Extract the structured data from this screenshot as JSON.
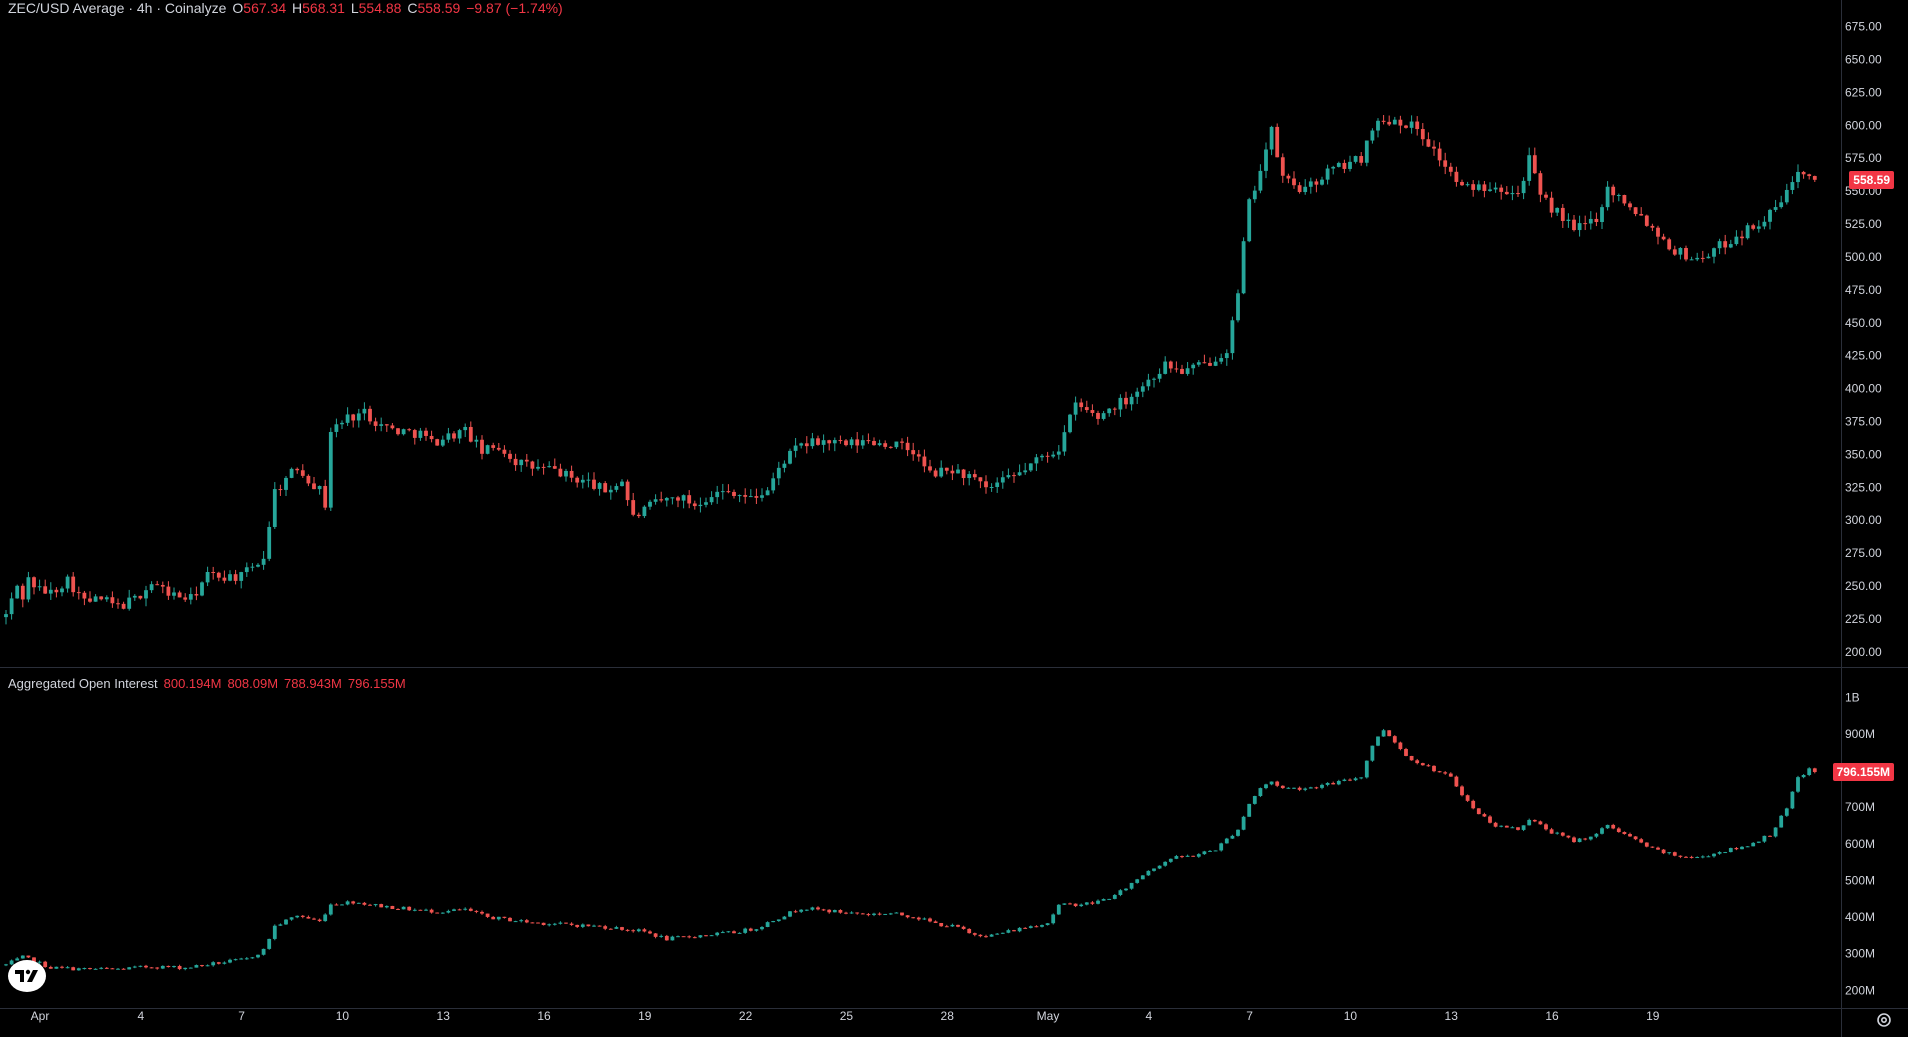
{
  "legend": {
    "symbol": "ZEC/USD Average · 4h · Coinalyze",
    "open_key": "O",
    "open": "567.34",
    "high_key": "H",
    "high": "568.31",
    "low_key": "L",
    "low": "554.88",
    "close_key": "C",
    "close": "558.59",
    "change": "−9.87 (−1.74%)"
  },
  "oi_legend": {
    "title": "Aggregated Open Interest",
    "v1": "800.194M",
    "v2": "808.09M",
    "v3": "788.943M",
    "v4": "796.155M"
  },
  "badges": {
    "price": "558.59",
    "oi": "796.155M"
  },
  "colors": {
    "up": "#26a69a",
    "down": "#ef5350",
    "background": "#000000",
    "axis_text": "#d1d4dc",
    "badge": "#f23645"
  },
  "icons": {
    "logo": "tradingview-logo-icon",
    "settings": "gear-icon"
  },
  "chart_data": [
    {
      "type": "candlestick",
      "title": "ZEC/USD Average · 4h · Coinalyze",
      "ylim": [
        190,
        680
      ],
      "y_ticks": [
        "200.00",
        "225.00",
        "250.00",
        "275.00",
        "300.00",
        "325.00",
        "350.00",
        "375.00",
        "400.00",
        "425.00",
        "450.00",
        "475.00",
        "500.00",
        "525.00",
        "550.00",
        "575.00",
        "600.00",
        "625.00",
        "650.00",
        "675.00"
      ],
      "x_tick_labels": [
        "Apr",
        "4",
        "7",
        "10",
        "13",
        "16",
        "19",
        "22",
        "25",
        "28",
        "May",
        "4",
        "7",
        "10",
        "13",
        "16",
        "19"
      ],
      "x_tick_days": [
        0,
        3,
        6,
        9,
        12,
        15,
        18,
        21,
        24,
        27,
        30,
        33,
        36,
        39,
        42,
        45,
        48
      ],
      "bars_per_day": 6,
      "keypoints": [
        [
          0,
          228
        ],
        [
          2,
          250
        ],
        [
          3,
          242
        ],
        [
          4,
          255
        ],
        [
          6,
          247
        ],
        [
          8,
          245
        ],
        [
          11,
          255
        ],
        [
          14,
          238
        ],
        [
          17,
          240
        ],
        [
          20,
          234
        ],
        [
          23,
          240
        ],
        [
          26,
          252
        ],
        [
          30,
          243
        ],
        [
          33,
          240
        ],
        [
          36,
          258
        ],
        [
          42,
          257
        ],
        [
          46,
          272
        ],
        [
          48,
          322
        ],
        [
          52,
          340
        ],
        [
          56,
          323
        ],
        [
          57,
          312
        ],
        [
          58,
          368
        ],
        [
          61,
          378
        ],
        [
          64,
          382
        ],
        [
          67,
          372
        ],
        [
          70,
          368
        ],
        [
          74,
          366
        ],
        [
          76,
          359
        ],
        [
          79,
          364
        ],
        [
          82,
          368
        ],
        [
          85,
          352
        ],
        [
          88,
          356
        ],
        [
          91,
          345
        ],
        [
          94,
          340
        ],
        [
          98,
          338
        ],
        [
          101,
          332
        ],
        [
          104,
          329
        ],
        [
          107,
          322
        ],
        [
          110,
          330
        ],
        [
          112,
          302
        ],
        [
          116,
          313
        ],
        [
          120,
          318
        ],
        [
          123,
          312
        ],
        [
          126,
          320
        ],
        [
          130,
          322
        ],
        [
          133,
          316
        ],
        [
          136,
          323
        ],
        [
          139,
          346
        ],
        [
          142,
          357
        ],
        [
          146,
          360
        ],
        [
          150,
          357
        ],
        [
          154,
          360
        ],
        [
          159,
          357
        ],
        [
          162,
          352
        ],
        [
          165,
          335
        ],
        [
          169,
          338
        ],
        [
          172,
          333
        ],
        [
          175,
          323
        ],
        [
          180,
          333
        ],
        [
          185,
          348
        ],
        [
          188,
          355
        ],
        [
          191,
          388
        ],
        [
          195,
          378
        ],
        [
          197,
          385
        ],
        [
          200,
          392
        ],
        [
          204,
          406
        ],
        [
          207,
          418
        ],
        [
          210,
          413
        ],
        [
          214,
          418
        ],
        [
          218,
          430
        ],
        [
          220,
          470
        ],
        [
          221,
          510
        ],
        [
          222,
          540
        ],
        [
          226,
          595
        ],
        [
          228,
          560
        ],
        [
          232,
          550
        ],
        [
          236,
          565
        ],
        [
          242,
          575
        ],
        [
          244,
          600
        ],
        [
          248,
          605
        ],
        [
          252,
          598
        ],
        [
          256,
          575
        ],
        [
          260,
          552
        ],
        [
          266,
          555
        ],
        [
          270,
          548
        ],
        [
          272,
          575
        ],
        [
          274,
          545
        ],
        [
          278,
          530
        ],
        [
          280,
          520
        ],
        [
          284,
          530
        ],
        [
          286,
          552
        ],
        [
          290,
          540
        ],
        [
          294,
          522
        ],
        [
          298,
          505
        ],
        [
          302,
          498
        ],
        [
          306,
          508
        ],
        [
          310,
          518
        ],
        [
          315,
          532
        ],
        [
          318,
          548
        ],
        [
          320,
          568
        ],
        [
          322,
          565
        ],
        [
          323,
          558.59
        ]
      ]
    },
    {
      "type": "candlestick",
      "title": "Aggregated Open Interest",
      "ylim": [
        160,
        1020
      ],
      "y_ticks": [
        "200M",
        "300M",
        "400M",
        "500M",
        "600M",
        "700M",
        "800M",
        "900M",
        "1B"
      ],
      "y_tick_values": [
        200,
        300,
        400,
        500,
        600,
        700,
        800,
        900,
        1000
      ],
      "keypoints": [
        [
          0,
          270
        ],
        [
          3,
          290
        ],
        [
          5,
          280
        ],
        [
          8,
          262
        ],
        [
          14,
          258
        ],
        [
          20,
          258
        ],
        [
          26,
          265
        ],
        [
          32,
          262
        ],
        [
          38,
          275
        ],
        [
          43,
          285
        ],
        [
          46,
          310
        ],
        [
          48,
          375
        ],
        [
          52,
          405
        ],
        [
          56,
          388
        ],
        [
          58,
          435
        ],
        [
          62,
          442
        ],
        [
          66,
          432
        ],
        [
          70,
          425
        ],
        [
          74,
          418
        ],
        [
          78,
          415
        ],
        [
          82,
          420
        ],
        [
          86,
          400
        ],
        [
          94,
          385
        ],
        [
          102,
          378
        ],
        [
          108,
          372
        ],
        [
          114,
          360
        ],
        [
          118,
          340
        ],
        [
          124,
          350
        ],
        [
          130,
          358
        ],
        [
          134,
          370
        ],
        [
          137,
          392
        ],
        [
          142,
          425
        ],
        [
          148,
          415
        ],
        [
          154,
          408
        ],
        [
          158,
          410
        ],
        [
          162,
          402
        ],
        [
          166,
          382
        ],
        [
          170,
          372
        ],
        [
          172,
          355
        ],
        [
          176,
          350
        ],
        [
          182,
          372
        ],
        [
          186,
          385
        ],
        [
          188,
          432
        ],
        [
          194,
          438
        ],
        [
          198,
          458
        ],
        [
          200,
          480
        ],
        [
          204,
          528
        ],
        [
          208,
          560
        ],
        [
          212,
          568
        ],
        [
          216,
          585
        ],
        [
          220,
          640
        ],
        [
          222,
          710
        ],
        [
          224,
          752
        ],
        [
          226,
          770
        ],
        [
          228,
          752
        ],
        [
          232,
          752
        ],
        [
          236,
          762
        ],
        [
          240,
          775
        ],
        [
          242,
          785
        ],
        [
          244,
          870
        ],
        [
          246,
          912
        ],
        [
          248,
          880
        ],
        [
          250,
          840
        ],
        [
          254,
          810
        ],
        [
          258,
          780
        ],
        [
          262,
          695
        ],
        [
          266,
          650
        ],
        [
          270,
          640
        ],
        [
          272,
          668
        ],
        [
          276,
          632
        ],
        [
          280,
          608
        ],
        [
          284,
          625
        ],
        [
          286,
          652
        ],
        [
          290,
          618
        ],
        [
          294,
          585
        ],
        [
          298,
          568
        ],
        [
          302,
          562
        ],
        [
          306,
          578
        ],
        [
          310,
          590
        ],
        [
          315,
          625
        ],
        [
          318,
          695
        ],
        [
          320,
          780
        ],
        [
          322,
          803
        ],
        [
          323,
          796.155
        ]
      ]
    }
  ]
}
